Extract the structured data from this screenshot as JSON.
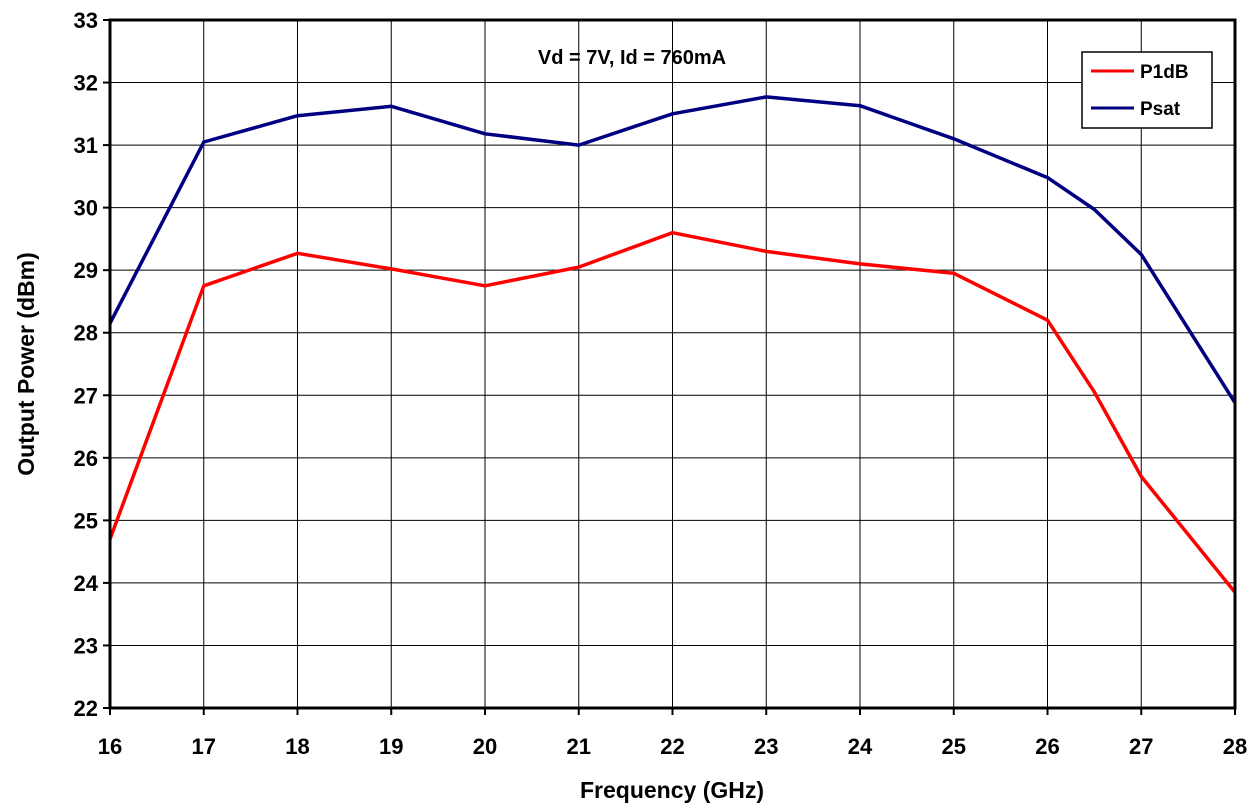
{
  "chart_data": {
    "type": "line",
    "title": "",
    "annotation": "Vd = 7V, Id = 760mA",
    "xlabel": "Frequency (GHz)",
    "ylabel": "Output Power (dBm)",
    "xlim": [
      16,
      28
    ],
    "ylim": [
      22,
      33
    ],
    "xticks": [
      16,
      17,
      18,
      19,
      20,
      21,
      22,
      23,
      24,
      25,
      26,
      27,
      28
    ],
    "yticks": [
      22,
      23,
      24,
      25,
      26,
      27,
      28,
      29,
      30,
      31,
      32,
      33
    ],
    "grid": true,
    "legend_position": "top-right",
    "series": [
      {
        "name": "P1dB",
        "color": "#ff0000",
        "x": [
          16,
          17,
          18,
          19,
          20,
          21,
          22,
          23,
          24,
          25,
          26,
          26.5,
          27,
          28
        ],
        "y": [
          24.7,
          28.75,
          29.27,
          29.02,
          28.75,
          29.05,
          29.6,
          29.3,
          29.1,
          28.95,
          28.2,
          27.05,
          25.7,
          23.85
        ]
      },
      {
        "name": "Psat",
        "color": "#000080",
        "x": [
          16,
          17,
          18,
          19,
          20,
          21,
          22,
          23,
          24,
          25,
          26,
          26.5,
          27,
          28
        ],
        "y": [
          28.15,
          31.05,
          31.47,
          31.62,
          31.18,
          31.0,
          31.5,
          31.77,
          31.63,
          31.1,
          30.48,
          29.97,
          29.25,
          26.88
        ]
      }
    ]
  }
}
